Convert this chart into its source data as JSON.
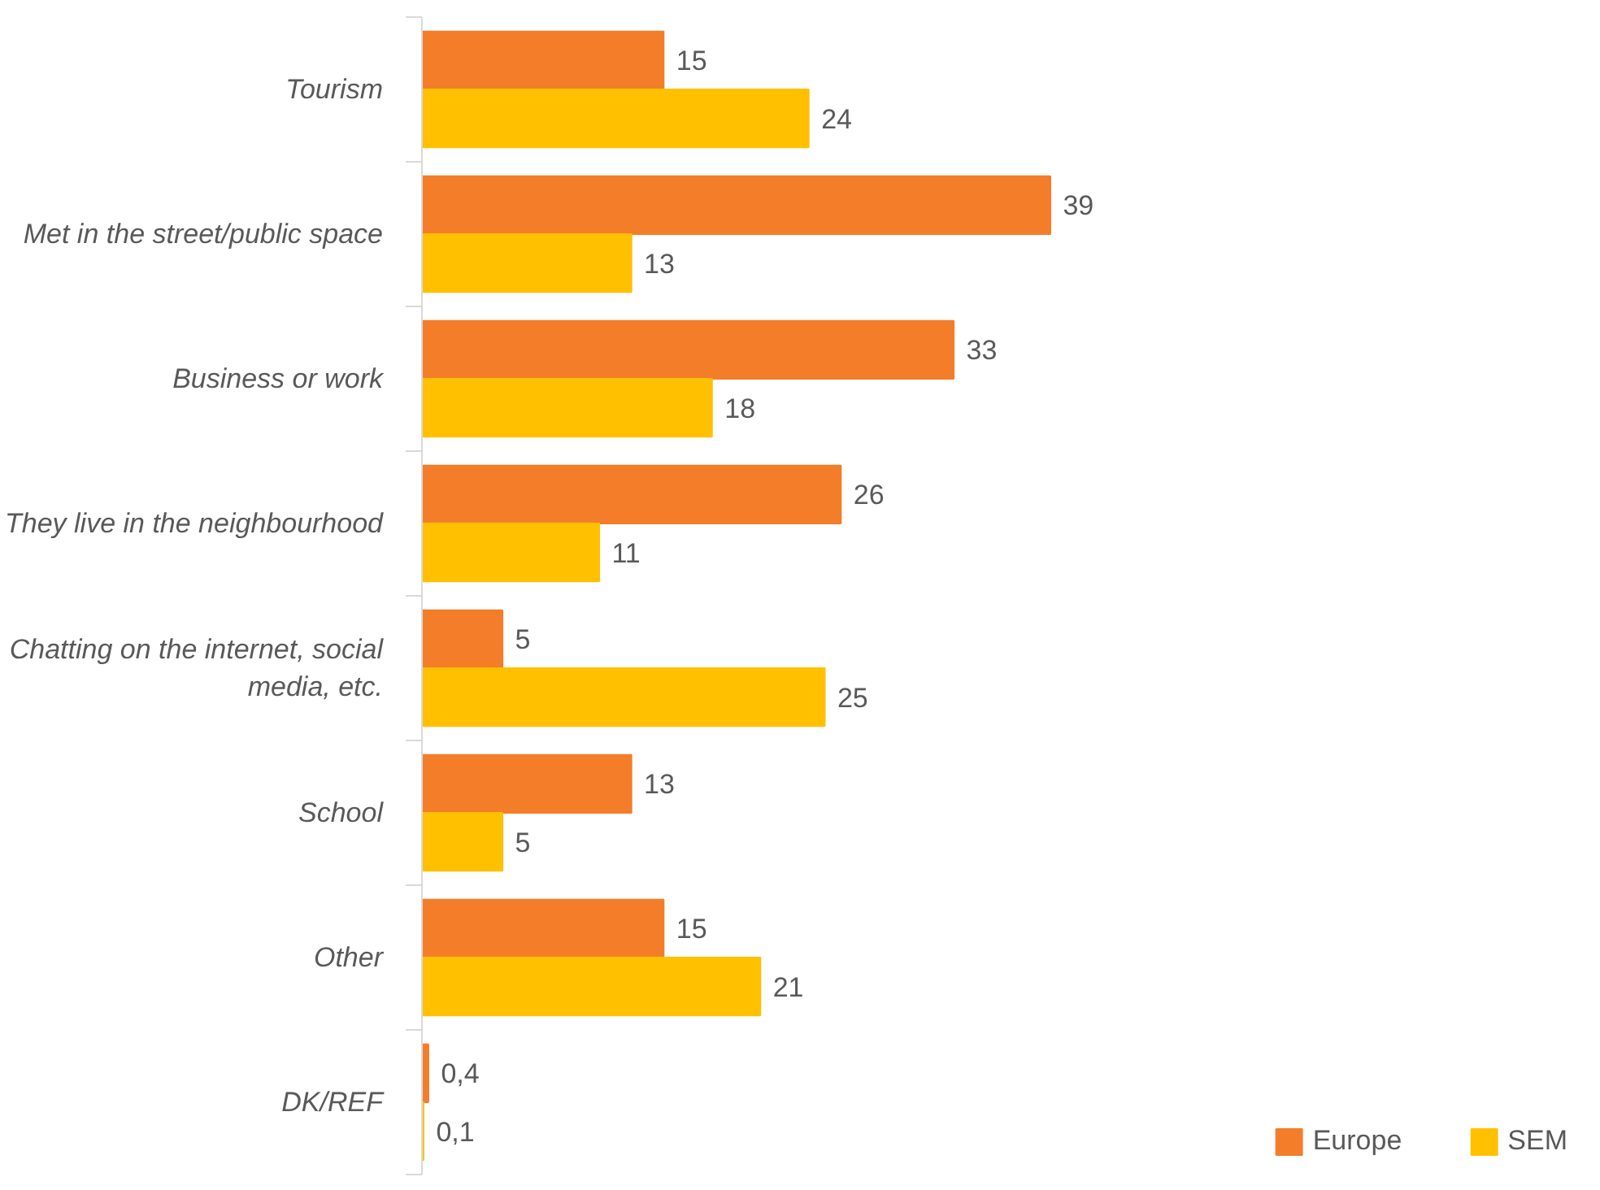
{
  "chart_data": {
    "type": "bar",
    "orientation": "horizontal",
    "categories": [
      "Tourism",
      "Met in the street/public space",
      "Business or work",
      "They live in the neighbourhood",
      "Chatting on the internet, social media, etc.",
      "School",
      "Other",
      "DK/REF"
    ],
    "series": [
      {
        "name": "Europe",
        "color": "#f47d2a",
        "values": [
          15,
          39,
          33,
          26,
          5,
          13,
          15,
          0.4
        ],
        "value_labels": [
          "15",
          "39",
          "33",
          "26",
          "5",
          "13",
          "15",
          "0,4"
        ]
      },
      {
        "name": "SEM",
        "color": "#ffc000",
        "values": [
          24,
          13,
          18,
          11,
          25,
          5,
          21,
          0.1
        ],
        "value_labels": [
          "24",
          "13",
          "18",
          "11",
          "25",
          "5",
          "21",
          "0,1"
        ]
      }
    ],
    "grid": false,
    "legend": "bottom right"
  }
}
